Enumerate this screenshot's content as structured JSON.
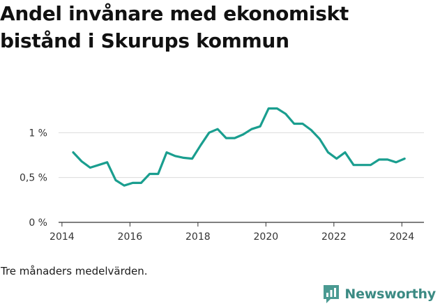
{
  "chart_data": {
    "type": "line",
    "title": "Andel invånare med ekonomiskt bistånd i Skurups kommun",
    "xlabel": "",
    "ylabel": "",
    "x_ticks": [
      "2014",
      "2016",
      "2018",
      "2020",
      "2022",
      "2024"
    ],
    "y_ticks": [
      "0 %",
      "0,5 %",
      "1 %"
    ],
    "y_tick_values": [
      0,
      0.5,
      1
    ],
    "xlim": [
      2013.9,
      2024.65
    ],
    "ylim": [
      0,
      1.5
    ],
    "grid": true,
    "line_color": "#1a9e8f",
    "x": [
      2014.33,
      2014.58,
      2014.83,
      2015.08,
      2015.33,
      2015.58,
      2015.83,
      2016.08,
      2016.33,
      2016.58,
      2016.83,
      2017.08,
      2017.33,
      2017.58,
      2017.83,
      2018.08,
      2018.33,
      2018.58,
      2018.83,
      2019.08,
      2019.33,
      2019.58,
      2019.83,
      2020.08,
      2020.33,
      2020.58,
      2020.83,
      2021.08,
      2021.33,
      2021.58,
      2021.83,
      2022.08,
      2022.33,
      2022.58,
      2022.83,
      2023.08,
      2023.33,
      2023.58,
      2023.83,
      2024.08
    ],
    "y": [
      0.78,
      0.68,
      0.61,
      0.64,
      0.67,
      0.47,
      0.41,
      0.44,
      0.44,
      0.54,
      0.54,
      0.78,
      0.74,
      0.72,
      0.71,
      0.86,
      1.0,
      1.04,
      0.94,
      0.94,
      0.98,
      1.04,
      1.07,
      1.27,
      1.27,
      1.21,
      1.1,
      1.1,
      1.03,
      0.93,
      0.78,
      0.71,
      0.78,
      0.64,
      0.64,
      0.64,
      0.7,
      0.7,
      0.67,
      0.71
    ]
  },
  "note": "Tre månaders medelvärden.",
  "brand": {
    "name": "Newsworthy",
    "icon": "newsworthy-logo-icon",
    "color": "#3b8a83"
  }
}
